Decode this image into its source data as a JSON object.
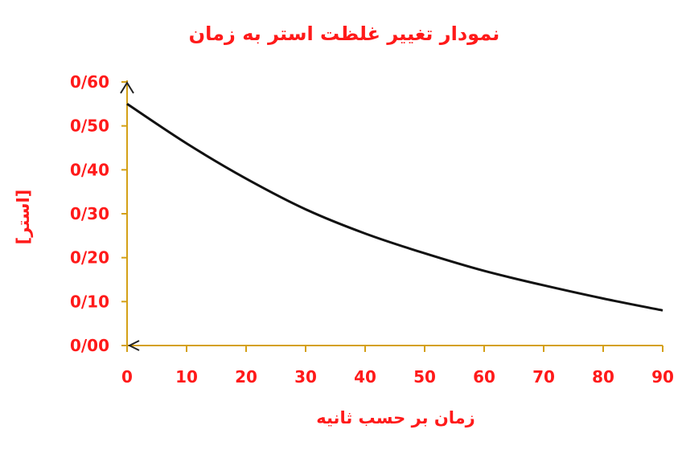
{
  "chart_data": {
    "type": "line",
    "title": "نمودار تغییر غلظت استر به زمان",
    "xlabel": "زمان بر حسب ثانیه",
    "ylabel": "[استر]",
    "xlim": [
      0,
      90
    ],
    "ylim": [
      0,
      0.6
    ],
    "x_ticks": [
      "0",
      "10",
      "20",
      "30",
      "40",
      "50",
      "60",
      "70",
      "80",
      "90"
    ],
    "y_ticks": [
      "0/00",
      "0/10",
      "0/20",
      "0/30",
      "0/40",
      "0/50",
      "0/60"
    ],
    "grid": false,
    "series": [
      {
        "x": [
          0,
          10,
          20,
          30,
          40,
          50,
          60,
          70,
          80,
          90
        ],
        "values": [
          0.55,
          0.46,
          0.38,
          0.31,
          0.255,
          0.21,
          0.17,
          0.137,
          0.107,
          0.08
        ]
      }
    ],
    "colors": {
      "text": "#ff1a1a",
      "axis": "#d4a017",
      "line": "#111111",
      "arrow": "#222222"
    }
  }
}
